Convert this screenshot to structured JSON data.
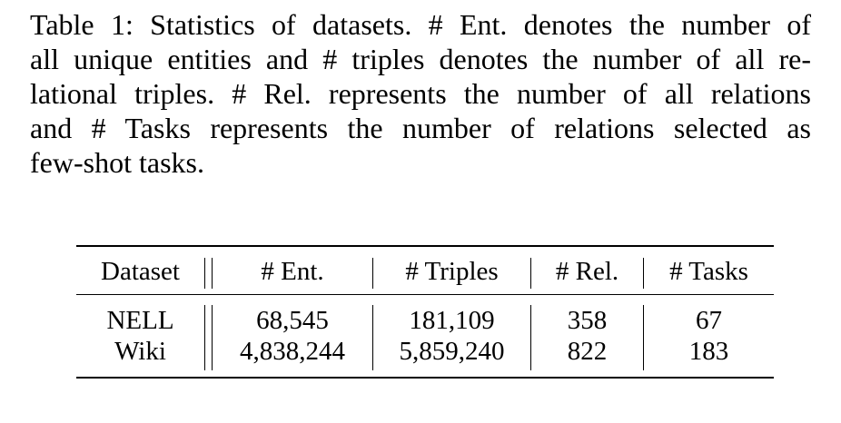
{
  "caption": {
    "lines": [
      "Table 1: Statistics of datasets. # Ent. denotes the number of",
      "all unique entities and # triples denotes the number of all re-",
      "lational triples. # Rel. represents the number of all relations",
      "and # Tasks represents the number of relations selected as",
      "few-shot tasks."
    ]
  },
  "table": {
    "headers": [
      "Dataset",
      "# Ent.",
      "# Triples",
      "# Rel.",
      "# Tasks"
    ],
    "rows": [
      [
        "NELL",
        "68,545",
        "181,109",
        "358",
        "67"
      ],
      [
        "Wiki",
        "4,838,244",
        "5,859,240",
        "822",
        "183"
      ]
    ]
  }
}
